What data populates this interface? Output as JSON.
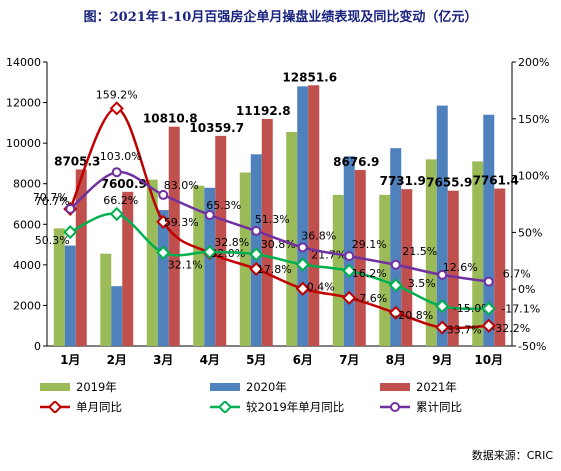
{
  "chart_data": {
    "type": "bar",
    "title": "图：2021年1-10月百强房企单月操盘业绩表现及同比变动（亿元）",
    "categories": [
      "1月",
      "2月",
      "3月",
      "4月",
      "5月",
      "6月",
      "7月",
      "8月",
      "9月",
      "10月"
    ],
    "series": [
      {
        "name": "2019年",
        "kind": "bar",
        "axis": "left",
        "color": "#9bbb59",
        "values": [
          5800,
          4550,
          8200,
          7900,
          8550,
          10550,
          7450,
          7450,
          9200,
          9100
        ]
      },
      {
        "name": "2020年",
        "kind": "bar",
        "axis": "left",
        "color": "#4f81bd",
        "values": [
          4950,
          2950,
          6700,
          7800,
          9450,
          12800,
          9350,
          9750,
          11850,
          11400
        ]
      },
      {
        "name": "2021年",
        "kind": "bar",
        "axis": "left",
        "color": "#c0504d",
        "values": [
          8705.3,
          7600.9,
          10810.8,
          10359.7,
          11192.8,
          12851.6,
          8676.9,
          7731.9,
          7655.9,
          7761.4
        ],
        "labels": [
          "8705.3",
          "7600.9",
          "10810.8",
          "10359.7",
          "11192.8",
          "12851.6",
          "8676.9",
          "7731.9",
          "7655.9",
          "7761.4"
        ]
      },
      {
        "name": "单月同比",
        "kind": "line",
        "axis": "right",
        "color": "#c00000",
        "values": [
          70.7,
          159.2,
          59.3,
          32.0,
          17.8,
          0.4,
          -7.6,
          -20.8,
          -33.7,
          -32.2
        ],
        "labels": [
          "70.7%",
          "159.2%",
          "59.3%",
          "32.0%",
          "17.8%",
          "0.4%",
          "-7.6%",
          "-20.8%",
          "-33.7%",
          "-32.2%"
        ]
      },
      {
        "name": "较2019年单月同比",
        "kind": "line",
        "axis": "right",
        "color": "#00b050",
        "values": [
          50.3,
          66.2,
          32.1,
          32.8,
          30.8,
          21.7,
          16.2,
          3.5,
          -15.0,
          -17.1
        ],
        "labels": [
          "50.3%",
          "66.2%",
          "32.1%",
          "32.8%",
          "30.8%",
          "21.7%",
          "16.2%",
          "3.5%",
          "-15.0%",
          "-17.1%"
        ]
      },
      {
        "name": "累计同比",
        "kind": "line",
        "axis": "right",
        "color": "#7030a0",
        "values": [
          70.7,
          103.0,
          83.0,
          65.3,
          51.3,
          36.8,
          29.1,
          21.5,
          12.6,
          6.7
        ],
        "labels": [
          "70.7%",
          "103.0%",
          "83.0%",
          "65.3%",
          "51.3%",
          "36.8%",
          "29.1%",
          "21.5%",
          "12.6%",
          "6.7%"
        ]
      }
    ],
    "y_left": {
      "min": 0,
      "max": 14000,
      "ticks": [
        "0",
        "2000",
        "4000",
        "6000",
        "8000",
        "10000",
        "12000",
        "14000"
      ]
    },
    "y_right": {
      "min": -50,
      "max": 200,
      "ticks": [
        "-50%",
        "0%",
        "50%",
        "100%",
        "150%",
        "200%"
      ]
    },
    "grid": false,
    "legend_position": "bottom"
  },
  "source": "数据来源：CRIC"
}
